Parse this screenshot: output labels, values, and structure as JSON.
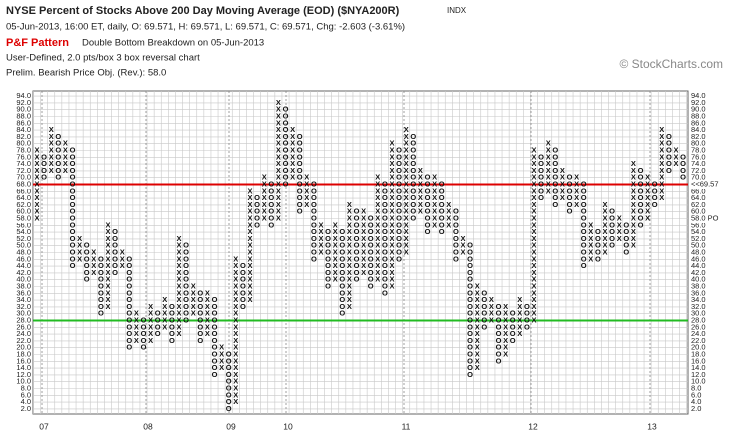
{
  "chart_data": {
    "type": "point-and-figure",
    "title": "NYSE Percent of Stocks Above 200 Day Moving Average (EOD) ($NYA200R)",
    "exchange": "INDX",
    "quote": "05-Jun-2013, 16:00 ET, daily, O: 69.571, H: 69.571, L: 69.571, C: 69.571, Chg: -2.603 (-3.61%)",
    "pattern_label": "P&F Pattern",
    "pattern": "Double Bottom Breakdown on 05-Jun-2013",
    "settings": "User-Defined, 2.0 pts/box 3 box reversal chart",
    "objective": "Prelim. Bearish Price Obj. (Rev.): 58.0",
    "watermark": "© StockCharts.com",
    "box_size": 2,
    "ylim": [
      0.5,
      95.5
    ],
    "yticks": [
      {
        "value": 2,
        "label": "2.0"
      },
      {
        "value": 4,
        "label": "4.0"
      },
      {
        "value": 6,
        "label": "6.0"
      },
      {
        "value": 8,
        "label": "8.0"
      },
      {
        "value": 10,
        "label": "10.0"
      },
      {
        "value": 12,
        "label": "12.0"
      },
      {
        "value": 14,
        "label": "14.0"
      },
      {
        "value": 16,
        "label": "16.0"
      },
      {
        "value": 18,
        "label": "18.0"
      },
      {
        "value": 20,
        "label": "20.0"
      },
      {
        "value": 22,
        "label": "22.0"
      },
      {
        "value": 24,
        "label": "24.0"
      },
      {
        "value": 26,
        "label": "26.0"
      },
      {
        "value": 28,
        "label": "28.0"
      },
      {
        "value": 30,
        "label": "30.0"
      },
      {
        "value": 32,
        "label": "32.0"
      },
      {
        "value": 34,
        "label": "34.0"
      },
      {
        "value": 36,
        "label": "36.0"
      },
      {
        "value": 38,
        "label": "38.0"
      },
      {
        "value": 40,
        "label": "40.0"
      },
      {
        "value": 42,
        "label": "42.0"
      },
      {
        "value": 44,
        "label": "44.0"
      },
      {
        "value": 46,
        "label": "46.0"
      },
      {
        "value": 48,
        "label": "48.0"
      },
      {
        "value": 50,
        "label": "50.0"
      },
      {
        "value": 52,
        "label": "52.0"
      },
      {
        "value": 54,
        "label": "54.0"
      },
      {
        "value": 56,
        "label": "56.0"
      },
      {
        "value": 58,
        "label": "58.0"
      },
      {
        "value": 60,
        "label": "60.0"
      },
      {
        "value": 62,
        "label": "62.0"
      },
      {
        "value": 64,
        "label": "64.0"
      },
      {
        "value": 66,
        "label": "66.0"
      },
      {
        "value": 68,
        "label": "68.0"
      },
      {
        "value": 70,
        "label": "70.0"
      },
      {
        "value": 72,
        "label": "72.0"
      },
      {
        "value": 74,
        "label": "74.0"
      },
      {
        "value": 76,
        "label": "76.0"
      },
      {
        "value": 78,
        "label": "78.0"
      },
      {
        "value": 80,
        "label": "80.0"
      },
      {
        "value": 82,
        "label": "82.0"
      },
      {
        "value": 84,
        "label": "84.0"
      },
      {
        "value": 86,
        "label": "86.0"
      },
      {
        "value": 88,
        "label": "88.0"
      },
      {
        "value": 90,
        "label": "90.0"
      },
      {
        "value": 92,
        "label": "92.0"
      },
      {
        "value": 94,
        "label": "94.0"
      }
    ],
    "xlabels": [
      "07",
      "08",
      "09",
      "10",
      "11",
      "12",
      "13"
    ],
    "resistance": {
      "value": 68,
      "label": "68.0",
      "color": "#dd0000",
      "right_label": "<<69.57"
    },
    "support": {
      "value": 28,
      "color": "#22bb22"
    },
    "price_objective": {
      "value": 58,
      "label": "58.0",
      "right_label": "58.0 PO"
    },
    "columns": [
      {
        "type": "X",
        "from": 58,
        "to": 78
      },
      {
        "type": "O",
        "from": 76,
        "to": 70
      },
      {
        "type": "X",
        "from": 72,
        "to": 84
      },
      {
        "type": "O",
        "from": 82,
        "to": 70
      },
      {
        "type": "X",
        "from": 72,
        "to": 80
      },
      {
        "type": "O",
        "from": 78,
        "to": 44
      },
      {
        "type": "X",
        "from": 46,
        "to": 52
      },
      {
        "type": "O",
        "from": 50,
        "to": 40
      },
      {
        "type": "X",
        "from": 42,
        "to": 48
      },
      {
        "type": "O",
        "from": 46,
        "to": 30
      },
      {
        "type": "X",
        "from": 32,
        "to": 56
      },
      {
        "type": "O",
        "from": 54,
        "to": 42
      },
      {
        "type": "X",
        "from": 44,
        "to": 48
      },
      {
        "type": "O",
        "from": 46,
        "to": 20
      },
      {
        "type": "X",
        "from": 22,
        "to": 30
      },
      {
        "type": "O",
        "from": 28,
        "to": 20
      },
      {
        "type": "X",
        "from": 22,
        "to": 32
      },
      {
        "type": "O",
        "from": 30,
        "to": 24
      },
      {
        "type": "X",
        "from": 26,
        "to": 34
      },
      {
        "type": "O",
        "from": 32,
        "to": 22
      },
      {
        "type": "X",
        "from": 24,
        "to": 52
      },
      {
        "type": "O",
        "from": 50,
        "to": 28
      },
      {
        "type": "X",
        "from": 30,
        "to": 38
      },
      {
        "type": "O",
        "from": 36,
        "to": 22
      },
      {
        "type": "X",
        "from": 24,
        "to": 36
      },
      {
        "type": "O",
        "from": 34,
        "to": 12
      },
      {
        "type": "X",
        "from": 14,
        "to": 20
      },
      {
        "type": "O",
        "from": 18,
        "to": 2
      },
      {
        "type": "X",
        "from": 4,
        "to": 46
      },
      {
        "type": "O",
        "from": 44,
        "to": 32
      },
      {
        "type": "X",
        "from": 34,
        "to": 66
      },
      {
        "type": "O",
        "from": 64,
        "to": 56
      },
      {
        "type": "X",
        "from": 58,
        "to": 70
      },
      {
        "type": "O",
        "from": 68,
        "to": 56
      },
      {
        "type": "X",
        "from": 58,
        "to": 92
      },
      {
        "type": "O",
        "from": 90,
        "to": 68
      },
      {
        "type": "X",
        "from": 70,
        "to": 84
      },
      {
        "type": "O",
        "from": 82,
        "to": 60
      },
      {
        "type": "X",
        "from": 62,
        "to": 70
      },
      {
        "type": "O",
        "from": 68,
        "to": 46
      },
      {
        "type": "X",
        "from": 48,
        "to": 56
      },
      {
        "type": "O",
        "from": 54,
        "to": 38
      },
      {
        "type": "X",
        "from": 40,
        "to": 56
      },
      {
        "type": "O",
        "from": 54,
        "to": 30
      },
      {
        "type": "X",
        "from": 32,
        "to": 62
      },
      {
        "type": "O",
        "from": 60,
        "to": 40
      },
      {
        "type": "X",
        "from": 42,
        "to": 60
      },
      {
        "type": "O",
        "from": 58,
        "to": 38
      },
      {
        "type": "X",
        "from": 40,
        "to": 70
      },
      {
        "type": "O",
        "from": 68,
        "to": 36
      },
      {
        "type": "X",
        "from": 38,
        "to": 80
      },
      {
        "type": "O",
        "from": 78,
        "to": 46
      },
      {
        "type": "X",
        "from": 48,
        "to": 84
      },
      {
        "type": "O",
        "from": 82,
        "to": 58
      },
      {
        "type": "X",
        "from": 60,
        "to": 72
      },
      {
        "type": "O",
        "from": 70,
        "to": 54
      },
      {
        "type": "X",
        "from": 56,
        "to": 70
      },
      {
        "type": "O",
        "from": 68,
        "to": 54
      },
      {
        "type": "X",
        "from": 56,
        "to": 62
      },
      {
        "type": "O",
        "from": 60,
        "to": 46
      },
      {
        "type": "X",
        "from": 48,
        "to": 52
      },
      {
        "type": "O",
        "from": 50,
        "to": 12
      },
      {
        "type": "X",
        "from": 14,
        "to": 38
      },
      {
        "type": "O",
        "from": 36,
        "to": 26
      },
      {
        "type": "X",
        "from": 28,
        "to": 34
      },
      {
        "type": "O",
        "from": 32,
        "to": 16
      },
      {
        "type": "X",
        "from": 18,
        "to": 32
      },
      {
        "type": "O",
        "from": 30,
        "to": 22
      },
      {
        "type": "X",
        "from": 24,
        "to": 34
      },
      {
        "type": "O",
        "from": 32,
        "to": 26
      },
      {
        "type": "X",
        "from": 28,
        "to": 78
      },
      {
        "type": "O",
        "from": 76,
        "to": 64
      },
      {
        "type": "X",
        "from": 66,
        "to": 80
      },
      {
        "type": "O",
        "from": 78,
        "to": 62
      },
      {
        "type": "X",
        "from": 64,
        "to": 72
      },
      {
        "type": "O",
        "from": 70,
        "to": 60
      },
      {
        "type": "X",
        "from": 62,
        "to": 70
      },
      {
        "type": "O",
        "from": 68,
        "to": 44
      },
      {
        "type": "X",
        "from": 46,
        "to": 56
      },
      {
        "type": "O",
        "from": 54,
        "to": 46
      },
      {
        "type": "X",
        "from": 48,
        "to": 62
      },
      {
        "type": "O",
        "from": 60,
        "to": 50
      },
      {
        "type": "X",
        "from": 52,
        "to": 58
      },
      {
        "type": "O",
        "from": 56,
        "to": 48
      },
      {
        "type": "X",
        "from": 50,
        "to": 74
      },
      {
        "type": "O",
        "from": 72,
        "to": 56
      },
      {
        "type": "X",
        "from": 58,
        "to": 70
      },
      {
        "type": "O",
        "from": 68,
        "to": 62
      },
      {
        "type": "X",
        "from": 64,
        "to": 84
      },
      {
        "type": "O",
        "from": 82,
        "to": 72
      },
      {
        "type": "X",
        "from": 74,
        "to": 78
      },
      {
        "type": "O",
        "from": 76,
        "to": 70
      }
    ]
  }
}
